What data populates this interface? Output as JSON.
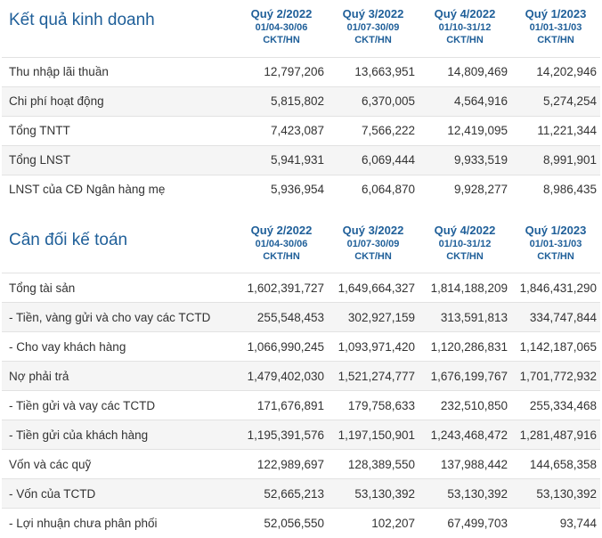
{
  "sections": [
    {
      "title": "Kết quả kinh doanh",
      "columns": [
        {
          "quarter": "Quý 2/2022",
          "range": "01/04-30/06",
          "audit": "CKT/HN"
        },
        {
          "quarter": "Quý 3/2022",
          "range": "01/07-30/09",
          "audit": "CKT/HN"
        },
        {
          "quarter": "Quý 4/2022",
          "range": "01/10-31/12",
          "audit": "CKT/HN"
        },
        {
          "quarter": "Quý 1/2023",
          "range": "01/01-31/03",
          "audit": "CKT/HN"
        }
      ],
      "rows": [
        {
          "label": "Thu nhập lãi thuần",
          "values": [
            "12,797,206",
            "13,663,951",
            "14,809,469",
            "14,202,946"
          ]
        },
        {
          "label": "Chi phí hoạt động",
          "values": [
            "5,815,802",
            "6,370,005",
            "4,564,916",
            "5,274,254"
          ]
        },
        {
          "label": "Tổng TNTT",
          "values": [
            "7,423,087",
            "7,566,222",
            "12,419,095",
            "11,221,344"
          ]
        },
        {
          "label": "Tổng LNST",
          "values": [
            "5,941,931",
            "6,069,444",
            "9,933,519",
            "8,991,901"
          ]
        },
        {
          "label": "LNST của CĐ Ngân hàng mẹ",
          "values": [
            "5,936,954",
            "6,064,870",
            "9,928,277",
            "8,986,435"
          ]
        }
      ]
    },
    {
      "title": "Cân đối kế toán",
      "columns": [
        {
          "quarter": "Quý 2/2022",
          "range": "01/04-30/06",
          "audit": "CKT/HN"
        },
        {
          "quarter": "Quý 3/2022",
          "range": "01/07-30/09",
          "audit": "CKT/HN"
        },
        {
          "quarter": "Quý 4/2022",
          "range": "01/10-31/12",
          "audit": "CKT/HN"
        },
        {
          "quarter": "Quý 1/2023",
          "range": "01/01-31/03",
          "audit": "CKT/HN"
        }
      ],
      "rows": [
        {
          "label": "Tổng tài sản",
          "values": [
            "1,602,391,727",
            "1,649,664,327",
            "1,814,188,209",
            "1,846,431,290"
          ]
        },
        {
          "label": " - Tiền, vàng gửi và cho vay các TCTD",
          "values": [
            "255,548,453",
            "302,927,159",
            "313,591,813",
            "334,747,844"
          ]
        },
        {
          "label": " - Cho vay khách hàng",
          "values": [
            "1,066,990,245",
            "1,093,971,420",
            "1,120,286,831",
            "1,142,187,065"
          ]
        },
        {
          "label": "Nợ phải trả",
          "values": [
            "1,479,402,030",
            "1,521,274,777",
            "1,676,199,767",
            "1,701,772,932"
          ]
        },
        {
          "label": " - Tiền gửi và vay các TCTD",
          "values": [
            "171,676,891",
            "179,758,633",
            "232,510,850",
            "255,334,468"
          ]
        },
        {
          "label": " - Tiền gửi của khách hàng",
          "values": [
            "1,195,391,576",
            "1,197,150,901",
            "1,243,468,472",
            "1,281,487,916"
          ]
        },
        {
          "label": "Vốn và các quỹ",
          "values": [
            "122,989,697",
            "128,389,550",
            "137,988,442",
            "144,658,358"
          ]
        },
        {
          "label": " - Vốn của TCTD",
          "values": [
            "52,665,213",
            "53,130,392",
            "53,130,392",
            "53,130,392"
          ]
        },
        {
          "label": " - Lợi nhuận chưa phân phối",
          "values": [
            "52,056,550",
            "102,207",
            "67,499,703",
            "93,744"
          ]
        }
      ]
    }
  ]
}
